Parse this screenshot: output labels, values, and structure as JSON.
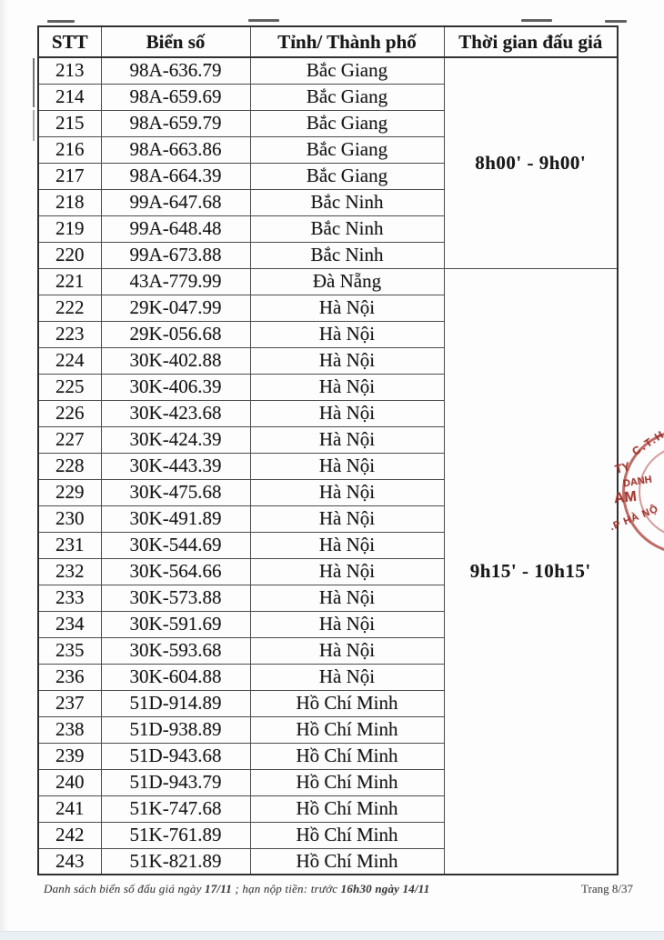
{
  "table": {
    "headers": {
      "stt": "STT",
      "plate": "Biển số",
      "province": "Tỉnh/ Thành phố",
      "time": "Thời gian đấu giá"
    },
    "rows": [
      {
        "stt": "213",
        "plate": "98A-636.79",
        "province": "Bắc Giang"
      },
      {
        "stt": "214",
        "plate": "98A-659.69",
        "province": "Bắc Giang"
      },
      {
        "stt": "215",
        "plate": "98A-659.79",
        "province": "Bắc Giang"
      },
      {
        "stt": "216",
        "plate": "98A-663.86",
        "province": "Bắc Giang"
      },
      {
        "stt": "217",
        "plate": "98A-664.39",
        "province": "Bắc Giang"
      },
      {
        "stt": "218",
        "plate": "99A-647.68",
        "province": "Bắc Ninh"
      },
      {
        "stt": "219",
        "plate": "99A-648.48",
        "province": "Bắc Ninh"
      },
      {
        "stt": "220",
        "plate": "99A-673.88",
        "province": "Bắc Ninh"
      },
      {
        "stt": "221",
        "plate": "43A-779.99",
        "province": "Đà Nẵng"
      },
      {
        "stt": "222",
        "plate": "29K-047.99",
        "province": "Hà Nội"
      },
      {
        "stt": "223",
        "plate": "29K-056.68",
        "province": "Hà Nội"
      },
      {
        "stt": "224",
        "plate": "30K-402.88",
        "province": "Hà Nội"
      },
      {
        "stt": "225",
        "plate": "30K-406.39",
        "province": "Hà Nội"
      },
      {
        "stt": "226",
        "plate": "30K-423.68",
        "province": "Hà Nội"
      },
      {
        "stt": "227",
        "plate": "30K-424.39",
        "province": "Hà Nội"
      },
      {
        "stt": "228",
        "plate": "30K-443.39",
        "province": "Hà Nội"
      },
      {
        "stt": "229",
        "plate": "30K-475.68",
        "province": "Hà Nội"
      },
      {
        "stt": "230",
        "plate": "30K-491.89",
        "province": "Hà Nội"
      },
      {
        "stt": "231",
        "plate": "30K-544.69",
        "province": "Hà Nội"
      },
      {
        "stt": "232",
        "plate": "30K-564.66",
        "province": "Hà Nội"
      },
      {
        "stt": "233",
        "plate": "30K-573.88",
        "province": "Hà Nội"
      },
      {
        "stt": "234",
        "plate": "30K-591.69",
        "province": "Hà Nội"
      },
      {
        "stt": "235",
        "plate": "30K-593.68",
        "province": "Hà Nội"
      },
      {
        "stt": "236",
        "plate": "30K-604.88",
        "province": "Hà Nội"
      },
      {
        "stt": "237",
        "plate": "51D-914.89",
        "province": "Hồ Chí Minh"
      },
      {
        "stt": "238",
        "plate": "51D-938.89",
        "province": "Hồ Chí Minh"
      },
      {
        "stt": "239",
        "plate": "51D-943.68",
        "province": "Hồ Chí Minh"
      },
      {
        "stt": "240",
        "plate": "51D-943.79",
        "province": "Hồ Chí Minh"
      },
      {
        "stt": "241",
        "plate": "51K-747.68",
        "province": "Hồ Chí Minh"
      },
      {
        "stt": "242",
        "plate": "51K-761.89",
        "province": "Hồ Chí Minh"
      },
      {
        "stt": "243",
        "plate": "51K-821.89",
        "province": "Hồ Chí Minh"
      }
    ],
    "time_groups": [
      {
        "label": "8h00' - 9h00'",
        "start_index": 0,
        "row_count": 8
      },
      {
        "label": "9h15' - 10h15'",
        "start_index": 8,
        "row_count": 23
      }
    ]
  },
  "footer": {
    "left_prefix": "Danh sách biển số đấu giá ngày ",
    "left_bold1": "17/11",
    "left_mid": " ; hạn nộp tiền: trước ",
    "left_bold2": "16h30 ngày 14/11",
    "page_label": "Trang 8/37"
  },
  "stamp": {
    "arc_top": "C.T.H",
    "word1": "TY",
    "word2": "DANH",
    "word3": "AM",
    "arc_bottom": ".P HÀ NỘ",
    "color": "#a93b34"
  }
}
